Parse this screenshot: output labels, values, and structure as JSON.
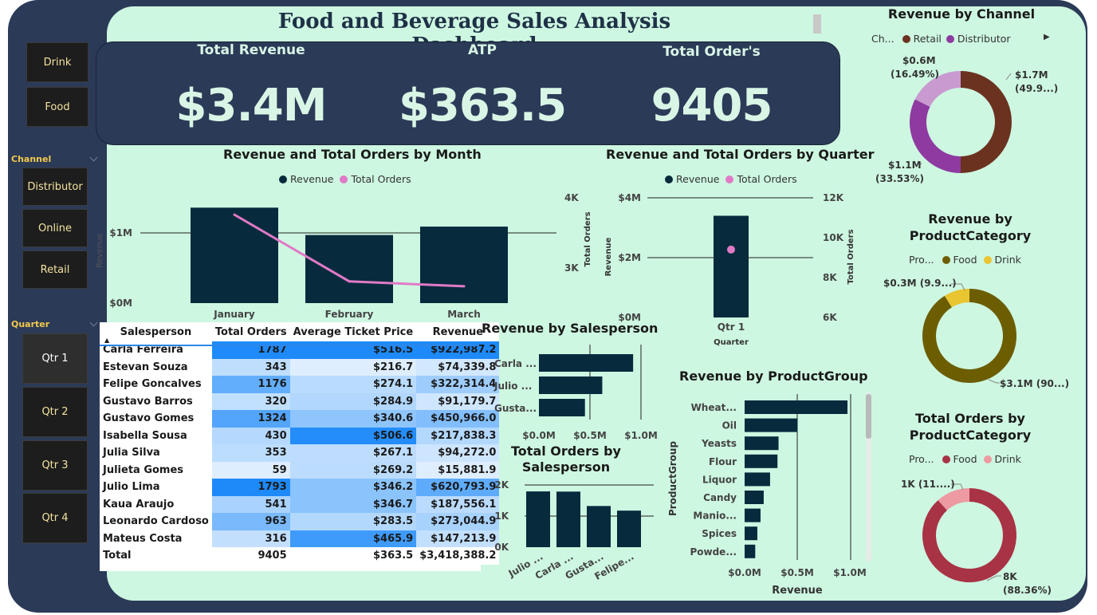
{
  "dashboard": {
    "title": "Food and Beverage Sales Analysis Dashboard"
  },
  "slicers": {
    "type_items": [
      "Drink",
      "Food"
    ],
    "channel": {
      "label": "Channel",
      "items": [
        "Distributor",
        "Online",
        "Retail"
      ]
    },
    "quarter": {
      "label": "Quarter",
      "items": [
        "Qtr 1",
        "Qtr 2",
        "Qtr 3",
        "Qtr 4"
      ]
    }
  },
  "kpis": [
    {
      "label": "Total Revenue",
      "value": "$3.4M"
    },
    {
      "label": "ATP",
      "value": "$363.5"
    },
    {
      "label": "Total Order's",
      "value": "9405"
    }
  ],
  "colors": {
    "bar": "#082a3d",
    "line": "#e17ac6",
    "retail": "#6b3220",
    "distributor": "#8e3aa0",
    "online": "#c89ad0",
    "food": "#6b5d00",
    "drink": "#e8c531",
    "food_orders": "#a83344",
    "drink_orders": "#ee9aa2"
  },
  "chart_data": [
    {
      "id": "month",
      "type": "bar",
      "title": "Revenue and Total Orders by Month",
      "categories": [
        "January",
        "February",
        "March"
      ],
      "series": [
        {
          "name": "Revenue",
          "type": "bar",
          "values": [
            1360000,
            970000,
            1090000
          ]
        },
        {
          "name": "Total Orders",
          "type": "line",
          "values": [
            3760,
            2810,
            2740
          ]
        }
      ],
      "ylabel": "Revenue",
      "y2label": "Total Orders",
      "y_ticks": [
        "$0M",
        "$1M"
      ],
      "y2_ticks": [
        "3K",
        "4K"
      ],
      "legend": "top"
    },
    {
      "id": "quarter",
      "type": "bar",
      "title": "Revenue and Total Orders by Quarter",
      "categories": [
        "Qtr 1"
      ],
      "series": [
        {
          "name": "Revenue",
          "type": "bar",
          "values": [
            3400000
          ]
        },
        {
          "name": "Total Orders",
          "type": "line",
          "values": [
            9405
          ]
        }
      ],
      "xlabel": "Quarter",
      "ylabel": "Revenue",
      "y2label": "Total Orders",
      "ylim": [
        0,
        4000000
      ],
      "y2lim": [
        6000,
        12000
      ],
      "y_ticks": [
        "$0M",
        "$2M",
        "$4M"
      ],
      "y2_ticks": [
        "6K",
        "8K",
        "10K",
        "12K"
      ],
      "legend": "top"
    },
    {
      "id": "channel",
      "type": "pie",
      "title": "Revenue by Channel",
      "legend_title": "Ch...",
      "legend_items": [
        "Retail",
        "Distributor"
      ],
      "slices": [
        {
          "name": "Retail",
          "value": 1.7,
          "label": "$1.7M",
          "pct": "(49.9...)"
        },
        {
          "name": "Distributor",
          "value": 1.1,
          "label": "$1.1M",
          "pct": "(33.53%)"
        },
        {
          "name": "Online",
          "value": 0.6,
          "label": "$0.6M",
          "pct": "(16.49%)"
        }
      ]
    },
    {
      "id": "prodcat_rev",
      "type": "pie",
      "title": "Revenue by ProductCategory",
      "legend_title": "Pro...",
      "legend_items": [
        "Food",
        "Drink"
      ],
      "slices": [
        {
          "name": "Food",
          "value": 3.1,
          "label": "$3.1M (90...)"
        },
        {
          "name": "Drink",
          "value": 0.3,
          "label": "$0.3M (9.9...)"
        }
      ]
    },
    {
      "id": "prodcat_orders",
      "type": "pie",
      "title": "Total Orders by ProductCategory",
      "legend_title": "Pro...",
      "legend_items": [
        "Food",
        "Drink"
      ],
      "slices": [
        {
          "name": "Food",
          "value": 88.36,
          "label": "8K",
          "pct": "(88.36%)"
        },
        {
          "name": "Drink",
          "value": 11.64,
          "label": "1K (11....)"
        }
      ]
    },
    {
      "id": "rev_sales",
      "type": "bar",
      "title": "Revenue by Salesperson",
      "orientation": "horizontal",
      "categories": [
        "Carla ...",
        "Julio ...",
        "Gusta..."
      ],
      "values": [
        922987,
        620794,
        450966
      ],
      "x_ticks": [
        "$0.0M",
        "$0.5M",
        "$1.0M"
      ],
      "xlim": [
        0,
        1000000
      ]
    },
    {
      "id": "orders_sales",
      "type": "bar",
      "title": "Total Orders by Salesperson",
      "categories": [
        "Julio ...",
        "Carla ...",
        "Gusta...",
        "Felipe..."
      ],
      "values": [
        1793,
        1787,
        1324,
        1176
      ],
      "y_ticks": [
        "0K",
        "1K",
        "2K"
      ],
      "ylim": [
        0,
        2000
      ]
    },
    {
      "id": "prodgroup",
      "type": "bar",
      "title": "Revenue by ProductGroup",
      "orientation": "horizontal",
      "categories": [
        "Wheat...",
        "Oil",
        "Yeasts",
        "Flour",
        "Liquor",
        "Candy",
        "Manio...",
        "Spices",
        "Powde..."
      ],
      "values": [
        970000,
        500000,
        320000,
        310000,
        240000,
        180000,
        150000,
        120000,
        100000
      ],
      "x_ticks": [
        "$0.0M",
        "$0.5M",
        "$1.0M"
      ],
      "xlim": [
        0,
        1000000
      ],
      "xlabel": "Revenue",
      "ylabel": "ProductGroup"
    }
  ],
  "table": {
    "headers": [
      "Salesperson",
      "Total Orders",
      "Average Ticket Price",
      "Revenue"
    ],
    "rows": [
      {
        "name": "Carla Ferreira",
        "orders": "1787",
        "atp": "$516.5",
        "revenue": "$922,987.2",
        "o": 1787,
        "a": 516.5,
        "r": 922987.2
      },
      {
        "name": "Estevan Souza",
        "orders": "343",
        "atp": "$216.7",
        "revenue": "$74,339.8",
        "o": 343,
        "a": 216.7,
        "r": 74339.8
      },
      {
        "name": "Felipe Goncalves",
        "orders": "1176",
        "atp": "$274.1",
        "revenue": "$322,314.4",
        "o": 1176,
        "a": 274.1,
        "r": 322314.4
      },
      {
        "name": "Gustavo Barros",
        "orders": "320",
        "atp": "$284.9",
        "revenue": "$91,179.7",
        "o": 320,
        "a": 284.9,
        "r": 91179.7
      },
      {
        "name": "Gustavo Gomes",
        "orders": "1324",
        "atp": "$340.6",
        "revenue": "$450,966.0",
        "o": 1324,
        "a": 340.6,
        "r": 450966.0
      },
      {
        "name": "Isabella Sousa",
        "orders": "430",
        "atp": "$506.6",
        "revenue": "$217,838.3",
        "o": 430,
        "a": 506.6,
        "r": 217838.3
      },
      {
        "name": "Julia Silva",
        "orders": "353",
        "atp": "$267.1",
        "revenue": "$94,272.0",
        "o": 353,
        "a": 267.1,
        "r": 94272.0
      },
      {
        "name": "Julieta Gomes",
        "orders": "59",
        "atp": "$269.2",
        "revenue": "$15,881.9",
        "o": 59,
        "a": 269.2,
        "r": 15881.9
      },
      {
        "name": "Julio Lima",
        "orders": "1793",
        "atp": "$346.2",
        "revenue": "$620,793.9",
        "o": 1793,
        "a": 346.2,
        "r": 620793.9
      },
      {
        "name": "Kaua Araujo",
        "orders": "541",
        "atp": "$346.7",
        "revenue": "$187,556.1",
        "o": 541,
        "a": 346.7,
        "r": 187556.1
      },
      {
        "name": "Leonardo Cardoso",
        "orders": "963",
        "atp": "$283.5",
        "revenue": "$273,044.9",
        "o": 963,
        "a": 283.5,
        "r": 273044.9
      },
      {
        "name": "Mateus Costa",
        "orders": "316",
        "atp": "$465.9",
        "revenue": "$147,213.9",
        "o": 316,
        "a": 465.9,
        "r": 147213.9
      }
    ],
    "total": {
      "name": "Total",
      "orders": "9405",
      "atp": "$363.5",
      "revenue": "$3,418,388.2"
    }
  }
}
